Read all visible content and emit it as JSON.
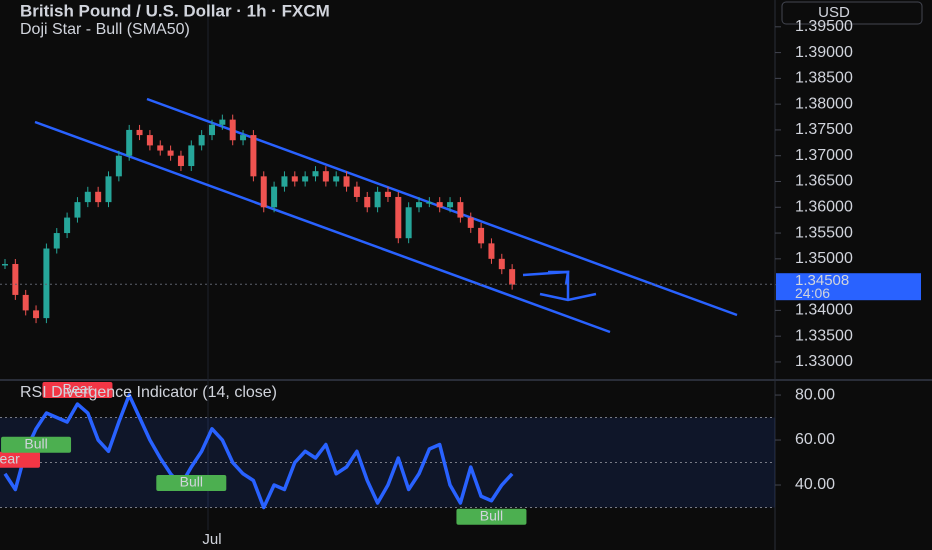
{
  "header": {
    "title": "British Pound / U.S. Dollar · 1h · FXCM",
    "subtitle": "Doji Star - Bull (SMA50)",
    "currency": "USD"
  },
  "chart_data": [
    {
      "type": "candlestick",
      "categories": [
        null,
        null,
        null,
        null,
        null,
        null,
        null,
        null,
        null,
        null,
        null,
        null,
        null,
        null,
        null,
        null,
        null,
        null,
        null,
        null,
        "Jul",
        null,
        null,
        null,
        null,
        null,
        null,
        null,
        null,
        null,
        null,
        null,
        null,
        null,
        null,
        null,
        null,
        null,
        null,
        null,
        null,
        null,
        null,
        null,
        null,
        null,
        null,
        null,
        null,
        null
      ],
      "values": [
        1.349,
        1.343,
        1.34,
        1.3385,
        1.352,
        1.355,
        1.358,
        1.361,
        1.363,
        1.361,
        1.366,
        1.37,
        1.375,
        1.374,
        1.372,
        1.371,
        1.37,
        1.368,
        1.372,
        1.374,
        1.376,
        1.377,
        1.373,
        1.374,
        1.366,
        1.36,
        1.364,
        1.366,
        1.365,
        1.366,
        1.367,
        1.365,
        1.366,
        1.364,
        1.362,
        1.36,
        1.363,
        1.362,
        1.354,
        1.36,
        1.361,
        1.361,
        1.36,
        1.361,
        1.358,
        1.356,
        1.353,
        1.35,
        1.348,
        1.345
      ],
      "up_color": "#26a69a",
      "down_color": "#ef5350",
      "ylim": [
        1.3265,
        1.4002
      ],
      "yticks": [
        {
          "value": 1.33,
          "label": "1.33000"
        },
        {
          "value": 1.335,
          "label": "1.33500"
        },
        {
          "value": 1.34,
          "label": "1.34000"
        },
        {
          "value": 1.345,
          "label": "1.34500"
        },
        {
          "value": 1.35,
          "label": "1.35000"
        },
        {
          "value": 1.355,
          "label": "1.35500"
        },
        {
          "value": 1.36,
          "label": "1.36000"
        },
        {
          "value": 1.365,
          "label": "1.36500"
        },
        {
          "value": 1.37,
          "label": "1.37000"
        },
        {
          "value": 1.375,
          "label": "1.37500"
        },
        {
          "value": 1.38,
          "label": "1.38000"
        },
        {
          "value": 1.385,
          "label": "1.38500"
        },
        {
          "value": 1.39,
          "label": "1.39000"
        },
        {
          "value": 1.395,
          "label": "1.39500"
        }
      ],
      "last_price": 1.34508,
      "countdown": "24:06",
      "last_price_color": "#2962ff"
    },
    {
      "type": "line",
      "title": "RSI Divergence Indicator (14, close)",
      "color": "#2962ff",
      "values": [
        45,
        38,
        55,
        65,
        72,
        70,
        68,
        76,
        72,
        60,
        55,
        68,
        80,
        70,
        60,
        52,
        45,
        40,
        48,
        55,
        65,
        60,
        50,
        45,
        42,
        30,
        40,
        38,
        50,
        55,
        52,
        58,
        45,
        48,
        55,
        42,
        32,
        40,
        52,
        38,
        45,
        56,
        58,
        40,
        32,
        48,
        35,
        33,
        40,
        45
      ],
      "ylim": [
        20,
        85.8
      ],
      "yticks": [
        {
          "value": 40,
          "label": "40.00"
        },
        {
          "value": 60,
          "label": "60.00"
        },
        {
          "value": 80,
          "label": "80.00"
        }
      ],
      "bands": [
        30,
        50,
        70
      ],
      "signals": [
        {
          "index": 0,
          "label": "Bear"
        },
        {
          "index": 7,
          "label": "Bear"
        },
        {
          "index": 3,
          "label": "Bull"
        },
        {
          "index": 18,
          "label": "Bull"
        },
        {
          "index": 47,
          "label": "Bull"
        }
      ]
    }
  ]
}
